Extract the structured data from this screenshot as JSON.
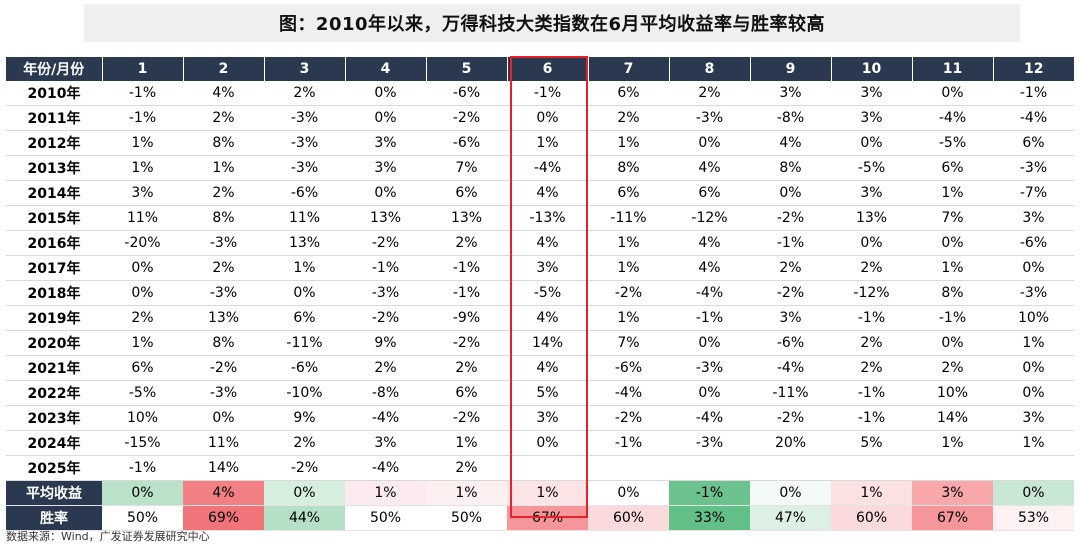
{
  "title": "图：2010年以来，万得科技大类指数在6月平均收益率与胜率较高",
  "header": [
    "年份/月份",
    "1",
    "2",
    "3",
    "4",
    "5",
    "6",
    "7",
    "8",
    "9",
    "10",
    "11",
    "12"
  ],
  "rows": [
    {
      "year": "2010年",
      "values": [
        "-1%",
        "4%",
        "2%",
        "0%",
        "-6%",
        "-1%",
        "6%",
        "2%",
        "3%",
        "3%",
        "0%",
        "-1%"
      ]
    },
    {
      "year": "2011年",
      "values": [
        "-1%",
        "2%",
        "-3%",
        "0%",
        "-2%",
        "0%",
        "2%",
        "-3%",
        "-8%",
        "3%",
        "-4%",
        "-4%"
      ]
    },
    {
      "year": "2012年",
      "values": [
        "1%",
        "8%",
        "-3%",
        "3%",
        "-6%",
        "1%",
        "1%",
        "0%",
        "4%",
        "0%",
        "-5%",
        "6%"
      ]
    },
    {
      "year": "2013年",
      "values": [
        "1%",
        "1%",
        "-3%",
        "3%",
        "7%",
        "-4%",
        "8%",
        "4%",
        "8%",
        "-5%",
        "6%",
        "-3%"
      ]
    },
    {
      "year": "2014年",
      "values": [
        "3%",
        "2%",
        "-6%",
        "0%",
        "6%",
        "4%",
        "6%",
        "6%",
        "0%",
        "3%",
        "1%",
        "-7%"
      ]
    },
    {
      "year": "2015年",
      "values": [
        "11%",
        "8%",
        "11%",
        "13%",
        "13%",
        "-13%",
        "-11%",
        "-12%",
        "-2%",
        "13%",
        "7%",
        "3%"
      ]
    },
    {
      "year": "2016年",
      "values": [
        "-20%",
        "-3%",
        "13%",
        "-2%",
        "2%",
        "4%",
        "1%",
        "4%",
        "-1%",
        "0%",
        "0%",
        "-6%"
      ]
    },
    {
      "year": "2017年",
      "values": [
        "0%",
        "2%",
        "1%",
        "-1%",
        "-1%",
        "3%",
        "1%",
        "4%",
        "2%",
        "2%",
        "1%",
        "0%"
      ]
    },
    {
      "year": "2018年",
      "values": [
        "0%",
        "-3%",
        "0%",
        "-3%",
        "-1%",
        "-5%",
        "-2%",
        "-4%",
        "-2%",
        "-12%",
        "8%",
        "-3%"
      ]
    },
    {
      "year": "2019年",
      "values": [
        "2%",
        "13%",
        "6%",
        "-2%",
        "-9%",
        "4%",
        "1%",
        "-1%",
        "3%",
        "-1%",
        "-1%",
        "10%"
      ]
    },
    {
      "year": "2020年",
      "values": [
        "1%",
        "8%",
        "-11%",
        "9%",
        "-2%",
        "14%",
        "7%",
        "0%",
        "-6%",
        "2%",
        "0%",
        "1%"
      ]
    },
    {
      "year": "2021年",
      "values": [
        "6%",
        "-2%",
        "-6%",
        "2%",
        "2%",
        "4%",
        "-6%",
        "-3%",
        "-4%",
        "2%",
        "2%",
        "0%"
      ]
    },
    {
      "year": "2022年",
      "values": [
        "-5%",
        "-3%",
        "-10%",
        "-8%",
        "6%",
        "5%",
        "-4%",
        "0%",
        "-11%",
        "-1%",
        "10%",
        "0%"
      ]
    },
    {
      "year": "2023年",
      "values": [
        "10%",
        "0%",
        "9%",
        "-4%",
        "-2%",
        "3%",
        "-2%",
        "-4%",
        "-2%",
        "-1%",
        "14%",
        "3%"
      ]
    },
    {
      "year": "2024年",
      "values": [
        "-15%",
        "11%",
        "2%",
        "3%",
        "1%",
        "0%",
        "-1%",
        "-3%",
        "20%",
        "5%",
        "1%",
        "1%"
      ]
    },
    {
      "year": "2025年",
      "values": [
        "-1%",
        "14%",
        "-2%",
        "-4%",
        "2%",
        "",
        "",
        "",
        "",
        "",
        "",
        ""
      ]
    }
  ],
  "summary": [
    {
      "label": "平均收益",
      "values": [
        "0%",
        "4%",
        "0%",
        "1%",
        "1%",
        "1%",
        "0%",
        "-1%",
        "0%",
        "1%",
        "3%",
        "0%"
      ],
      "colors": [
        "#b9e2c8",
        "#f27f83",
        "#d5eedd",
        "#fcebee",
        "#fdf0f1",
        "#fce4e6",
        "#ffffff",
        "#6cc28f",
        "#f4fbf6",
        "#fce1e3",
        "#f8a8ab",
        "#c9e8d3"
      ]
    },
    {
      "label": "胜率",
      "values": [
        "50%",
        "69%",
        "44%",
        "50%",
        "50%",
        "67%",
        "60%",
        "33%",
        "47%",
        "60%",
        "67%",
        "53%"
      ],
      "colors": [
        "#ffffff",
        "#f07479",
        "#b6e0c6",
        "#ffffff",
        "#ffffff",
        "#f5969a",
        "#fadadc",
        "#63bf88",
        "#dcf1e3",
        "#fadadc",
        "#f5969a",
        "#fdf1f2"
      ]
    }
  ],
  "highlight_month": "6",
  "highlight_color": "#e8202a",
  "header_color": "#2a3950",
  "source": "数据来源：Wind，广发证券发展研究中心"
}
